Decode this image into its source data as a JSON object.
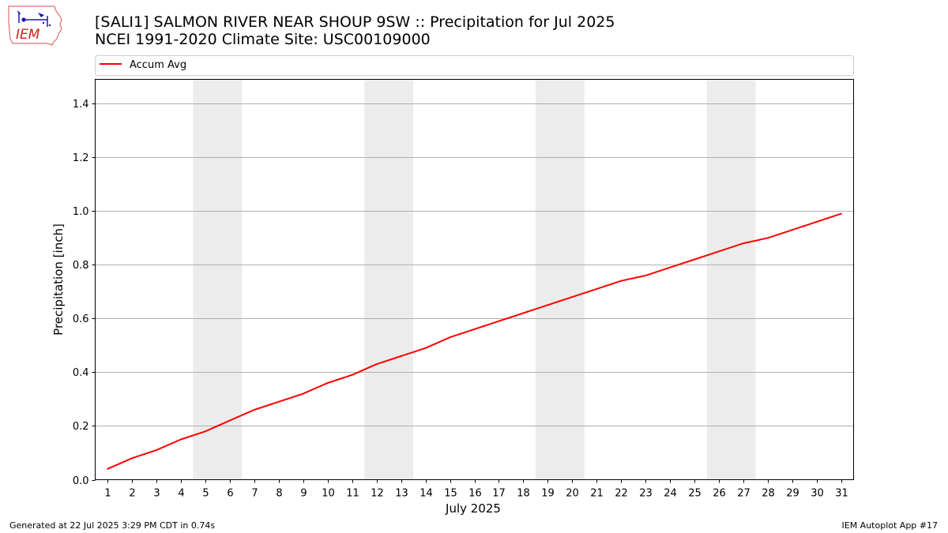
{
  "title_line1": "[SALI1] SALMON RIVER NEAR SHOUP 9SW :: Precipitation for Jul 2025",
  "title_line2": "NCEI 1991-2020 Climate Site: USC00109000",
  "logo_text": "IEM",
  "footer": {
    "left": "Generated at 22 Jul 2025 3:29 PM CDT in 0.74s",
    "right": "IEM Autoplot App #17"
  },
  "chart_data": {
    "type": "line",
    "xlabel": "July 2025",
    "ylabel": "Precipitation [inch]",
    "xlim": [
      0.5,
      31.5
    ],
    "ylim": [
      0,
      1.49
    ],
    "yticks": [
      0.0,
      0.2,
      0.4,
      0.6,
      0.8,
      1.0,
      1.2,
      1.4
    ],
    "ytick_labels": [
      "0.0",
      "0.2",
      "0.4",
      "0.6",
      "0.8",
      "1.0",
      "1.2",
      "1.4"
    ],
    "grid": "horizontal",
    "legend_placement": "top, above plot",
    "weekend_shading": [
      [
        4.5,
        6.5
      ],
      [
        11.5,
        13.5
      ],
      [
        18.5,
        20.5
      ],
      [
        25.5,
        27.5
      ]
    ],
    "x": [
      1,
      2,
      3,
      4,
      5,
      6,
      7,
      8,
      9,
      10,
      11,
      12,
      13,
      14,
      15,
      16,
      17,
      18,
      19,
      20,
      21,
      22,
      23,
      24,
      25,
      26,
      27,
      28,
      29,
      30,
      31
    ],
    "series": [
      {
        "name": "Accum Avg",
        "color": "#ff0000",
        "values": [
          0.04,
          0.08,
          0.11,
          0.15,
          0.18,
          0.22,
          0.26,
          0.29,
          0.32,
          0.36,
          0.39,
          0.43,
          0.46,
          0.49,
          0.53,
          0.56,
          0.59,
          0.62,
          0.65,
          0.68,
          0.71,
          0.74,
          0.76,
          0.79,
          0.82,
          0.85,
          0.88,
          0.9,
          0.93,
          0.96,
          0.99
        ]
      }
    ],
    "colors": {
      "shading": "#ececec",
      "grid": "#b0b0b0",
      "axes": "#000000"
    }
  }
}
